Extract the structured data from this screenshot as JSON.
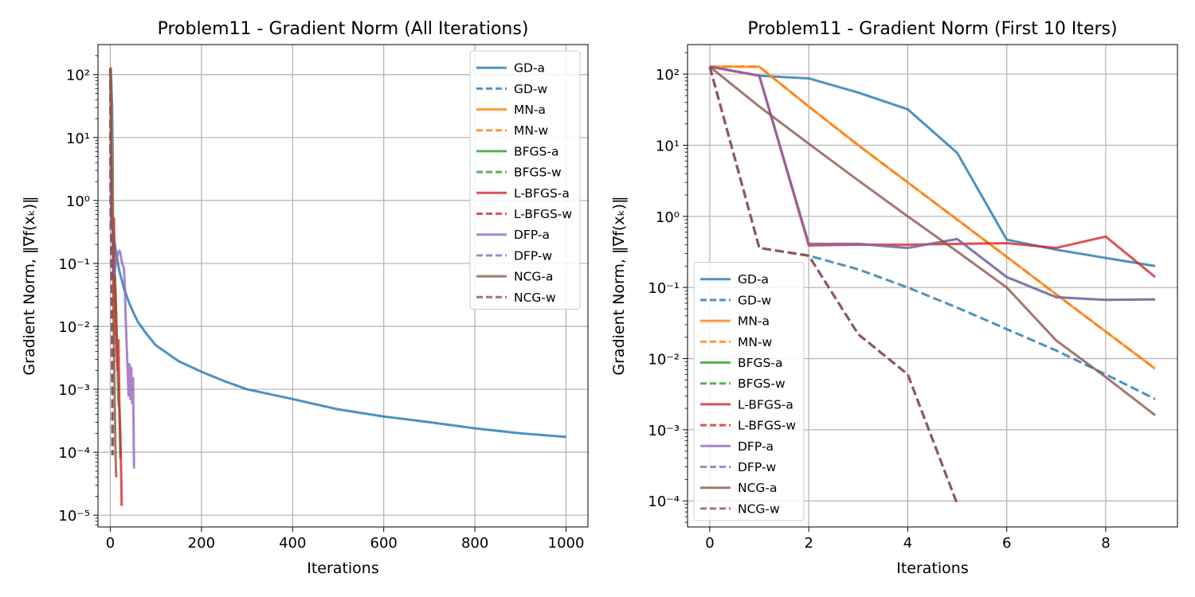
{
  "chart_data": [
    {
      "type": "line",
      "title": "Problem11 - Gradient Norm (All Iterations)",
      "xlabel": "Iterations",
      "ylabel": "Gradient Norm, ‖∇f(xₖ)‖",
      "yscale": "log",
      "xlim": [
        -27,
        1048
      ],
      "ylim": [
        6.5e-06,
        300
      ],
      "xticks": [
        0,
        200,
        400,
        600,
        800,
        1000
      ],
      "yticks": [
        1e-05,
        0.0001,
        0.001,
        0.01,
        0.1,
        1,
        10,
        100
      ],
      "ytick_labels": [
        "10⁻⁵",
        "10⁻⁴",
        "10⁻³",
        "10⁻²",
        "10⁻¹",
        "10⁰",
        "10¹",
        "10²"
      ],
      "grid": true,
      "legend": "top-right",
      "series": [
        {
          "name": "GD-a",
          "color": "#1f77b4",
          "style": "solid",
          "x": [
            0,
            1,
            2,
            3,
            4,
            5,
            6,
            8,
            10,
            15,
            20,
            30,
            40,
            50,
            60,
            80,
            100,
            150,
            200,
            250,
            300,
            400,
            500,
            600,
            700,
            800,
            900,
            1000
          ],
          "y": [
            127,
            95,
            87,
            50,
            32,
            7.8,
            0.47,
            0.25,
            0.2,
            0.12,
            0.075,
            0.04,
            0.025,
            0.017,
            0.012,
            0.0075,
            0.005,
            0.0028,
            0.0019,
            0.00135,
            0.001,
            0.0007,
            0.00048,
            0.00037,
            0.0003,
            0.00024,
            0.0002,
            0.000175
          ]
        },
        {
          "name": "GD-w",
          "color": "#1f77b4",
          "style": "dashed",
          "x": [
            0,
            1,
            2,
            3,
            4,
            5,
            6,
            7,
            8,
            9
          ],
          "y": [
            127,
            0.36,
            0.28,
            0.18,
            0.1,
            0.05,
            0.026,
            0.013,
            0.006,
            0.0027
          ]
        },
        {
          "name": "MN-a",
          "color": "#ff7f0e",
          "style": "solid",
          "x": [
            0,
            1,
            2,
            3,
            4,
            5,
            6,
            7,
            8,
            9
          ],
          "y": [
            127,
            127,
            35,
            10,
            3,
            0.9,
            0.27,
            0.08,
            0.024,
            0.0072
          ]
        },
        {
          "name": "MN-w",
          "color": "#ff7f0e",
          "style": "dashed",
          "x": [
            0,
            1,
            2,
            3,
            4,
            5,
            6,
            7,
            8,
            9
          ],
          "y": [
            127,
            127,
            35,
            10,
            3,
            0.9,
            0.27,
            0.08,
            0.024,
            0.0072
          ]
        },
        {
          "name": "BFGS-a",
          "color": "#2ca02c",
          "style": "solid",
          "x": [
            0,
            1,
            2,
            3,
            4,
            5,
            6,
            8,
            10,
            12,
            14,
            16,
            18,
            20,
            22
          ],
          "y": [
            127,
            95,
            0.41,
            0.41,
            0.36,
            0.48,
            0.14,
            0.07,
            0.065,
            0.03,
            0.008,
            0.002,
            0.0006,
            0.0005,
            8e-05
          ]
        },
        {
          "name": "BFGS-w",
          "color": "#2ca02c",
          "style": "dashed",
          "x": [
            0,
            1,
            2,
            3,
            4,
            5
          ],
          "y": [
            127,
            0.36,
            0.28,
            0.022,
            0.006,
            9e-05
          ]
        },
        {
          "name": "L-BFGS-a",
          "color": "#d62728",
          "style": "solid",
          "x": [
            0,
            1,
            2,
            3,
            4,
            5,
            6,
            7,
            8,
            9,
            10,
            12,
            14,
            16,
            18,
            20,
            22,
            24,
            25
          ],
          "y": [
            127,
            95,
            0.4,
            0.4,
            0.4,
            0.4,
            0.42,
            0.36,
            0.52,
            0.14,
            0.05,
            0.02,
            0.005,
            0.002,
            0.006,
            0.0005,
            0.0002,
            4e-05,
            1.4e-05
          ]
        },
        {
          "name": "L-BFGS-w",
          "color": "#d62728",
          "style": "dashed",
          "x": [
            0,
            1,
            2,
            3,
            4,
            5
          ],
          "y": [
            127,
            0.36,
            0.28,
            0.022,
            0.006,
            9e-05
          ]
        },
        {
          "name": "DFP-a",
          "color": "#9467bd",
          "style": "solid",
          "x": [
            0,
            1,
            2,
            3,
            4,
            5,
            6,
            7,
            8,
            9,
            12,
            15,
            18,
            20,
            22,
            24,
            26,
            28,
            30,
            32,
            34,
            36,
            38,
            40,
            42,
            44,
            46,
            48,
            50,
            52
          ],
          "y": [
            127,
            95,
            0.41,
            0.41,
            0.36,
            0.48,
            0.14,
            0.07,
            0.065,
            0.068,
            0.1,
            0.13,
            0.15,
            0.16,
            0.15,
            0.12,
            0.1,
            0.09,
            0.085,
            0.04,
            0.012,
            0.005,
            0.002,
            0.0008,
            0.0025,
            0.0007,
            0.0022,
            0.0006,
            0.0015,
            5.5e-05
          ]
        },
        {
          "name": "DFP-w",
          "color": "#9467bd",
          "style": "dashed",
          "x": [
            0,
            1,
            2,
            3,
            4,
            5
          ],
          "y": [
            127,
            0.36,
            0.28,
            0.022,
            0.006,
            9e-05
          ]
        },
        {
          "name": "NCG-a",
          "color": "#8c564b",
          "style": "solid",
          "x": [
            0,
            1,
            2,
            3,
            4,
            5,
            6,
            7,
            8,
            9,
            10,
            11,
            12,
            13
          ],
          "y": [
            127,
            35,
            10.5,
            3.2,
            1,
            0.32,
            0.1,
            0.018,
            0.0055,
            0.0016,
            0.0005,
            0.00015,
            6e-05,
            4e-05
          ]
        },
        {
          "name": "NCG-w",
          "color": "#8c564b",
          "style": "dashed",
          "x": [
            0,
            1,
            2,
            3,
            4,
            5
          ],
          "y": [
            127,
            0.36,
            0.28,
            0.022,
            0.006,
            9e-05
          ]
        }
      ]
    },
    {
      "type": "line",
      "title": "Problem11 - Gradient Norm (First 10 Iters)",
      "xlabel": "Iterations",
      "ylabel": "Gradient Norm, ‖∇f(xₖ)‖",
      "yscale": "log",
      "xlim": [
        -0.45,
        9.45
      ],
      "ylim": [
        4.3e-05,
        260
      ],
      "xticks": [
        0,
        2,
        4,
        6,
        8
      ],
      "yticks": [
        0.0001,
        0.001,
        0.01,
        0.1,
        1,
        10,
        100
      ],
      "ytick_labels": [
        "10⁻⁴",
        "10⁻³",
        "10⁻²",
        "10⁻¹",
        "10⁰",
        "10¹",
        "10²"
      ],
      "grid": true,
      "legend": "bottom-left",
      "series": [
        {
          "name": "GD-a",
          "color": "#1f77b4",
          "style": "solid",
          "x": [
            0,
            1,
            2,
            3,
            4,
            5,
            6,
            7,
            8,
            9
          ],
          "y": [
            127,
            95,
            87,
            55,
            32,
            7.8,
            0.47,
            0.34,
            0.26,
            0.2
          ]
        },
        {
          "name": "GD-w",
          "color": "#1f77b4",
          "style": "dashed",
          "x": [
            0,
            1,
            2,
            3,
            4,
            5,
            6,
            7,
            8,
            9
          ],
          "y": [
            127,
            0.36,
            0.28,
            0.18,
            0.1,
            0.052,
            0.026,
            0.013,
            0.006,
            0.0027
          ]
        },
        {
          "name": "MN-a",
          "color": "#ff7f0e",
          "style": "solid",
          "x": [
            0,
            1,
            2,
            3,
            4,
            5,
            6,
            7,
            8,
            9
          ],
          "y": [
            127,
            127,
            35,
            10,
            3,
            0.9,
            0.27,
            0.08,
            0.024,
            0.0072
          ]
        },
        {
          "name": "MN-w",
          "color": "#ff7f0e",
          "style": "dashed",
          "x": [
            0,
            1,
            2,
            3,
            4,
            5,
            6,
            7,
            8,
            9
          ],
          "y": [
            127,
            127,
            35,
            10,
            3,
            0.9,
            0.27,
            0.08,
            0.024,
            0.0072
          ]
        },
        {
          "name": "BFGS-a",
          "color": "#2ca02c",
          "style": "solid",
          "x": [
            0,
            1,
            2,
            3,
            4,
            5,
            6,
            7,
            8,
            9
          ],
          "y": [
            127,
            95,
            0.41,
            0.41,
            0.36,
            0.48,
            0.14,
            0.073,
            0.067,
            0.068
          ]
        },
        {
          "name": "BFGS-w",
          "color": "#2ca02c",
          "style": "dashed",
          "x": [
            0,
            1,
            2,
            3,
            4,
            5
          ],
          "y": [
            127,
            0.36,
            0.28,
            0.022,
            0.006,
            9e-05
          ]
        },
        {
          "name": "L-BFGS-a",
          "color": "#d62728",
          "style": "solid",
          "x": [
            0,
            1,
            2,
            3,
            4,
            5,
            6,
            7,
            8,
            9
          ],
          "y": [
            127,
            95,
            0.39,
            0.4,
            0.4,
            0.41,
            0.42,
            0.36,
            0.52,
            0.14
          ]
        },
        {
          "name": "L-BFGS-w",
          "color": "#d62728",
          "style": "dashed",
          "x": [
            0,
            1,
            2,
            3,
            4,
            5
          ],
          "y": [
            127,
            0.36,
            0.28,
            0.022,
            0.006,
            9e-05
          ]
        },
        {
          "name": "DFP-a",
          "color": "#9467bd",
          "style": "solid",
          "x": [
            0,
            1,
            2,
            3,
            4,
            5,
            6,
            7,
            8,
            9
          ],
          "y": [
            127,
            95,
            0.41,
            0.41,
            0.36,
            0.48,
            0.14,
            0.073,
            0.067,
            0.068
          ]
        },
        {
          "name": "DFP-w",
          "color": "#9467bd",
          "style": "dashed",
          "x": [
            0,
            1,
            2,
            3,
            4,
            5
          ],
          "y": [
            127,
            0.36,
            0.28,
            0.022,
            0.006,
            9e-05
          ]
        },
        {
          "name": "NCG-a",
          "color": "#8c564b",
          "style": "solid",
          "x": [
            0,
            1,
            2,
            3,
            4,
            5,
            6,
            7,
            8,
            9
          ],
          "y": [
            127,
            35,
            10.5,
            3.2,
            1,
            0.32,
            0.1,
            0.018,
            0.0055,
            0.0016
          ]
        },
        {
          "name": "NCG-w",
          "color": "#8c564b",
          "style": "dashed",
          "x": [
            0,
            1,
            2,
            3,
            4,
            5
          ],
          "y": [
            127,
            0.36,
            0.28,
            0.022,
            0.006,
            9e-05
          ]
        }
      ]
    }
  ]
}
